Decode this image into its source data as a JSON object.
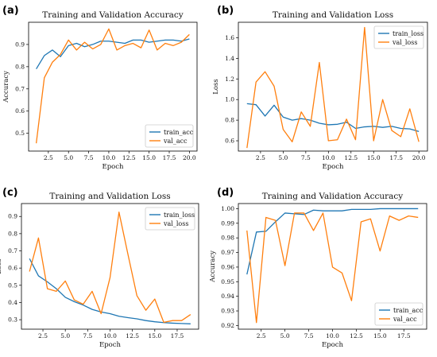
{
  "figure": {
    "panel_labels": [
      "(a)",
      "(b)",
      "(c)",
      "(d)"
    ]
  },
  "colors": {
    "train": "#1f77b4",
    "val": "#ff7f0e"
  },
  "chart_data": [
    {
      "label": "(a)",
      "type": "line",
      "title": "Training and Validation Accuracy",
      "xlabel": "Epoch",
      "ylabel": "Accuracy",
      "xlim": [
        0.05,
        20.95
      ],
      "ylim": [
        0.42,
        1.0
      ],
      "xticks": [
        2.5,
        5.0,
        7.5,
        10.0,
        12.5,
        15.0,
        17.5,
        20.0
      ],
      "yticks": [
        0.5,
        0.6,
        0.7,
        0.8,
        0.9
      ],
      "x": [
        1,
        2,
        3,
        4,
        5,
        6,
        7,
        8,
        9,
        10,
        11,
        12,
        13,
        14,
        15,
        16,
        17,
        18,
        19,
        20
      ],
      "series": [
        {
          "name": "train_acc",
          "color": "#1f77b4",
          "values": [
            0.79,
            0.85,
            0.875,
            0.845,
            0.895,
            0.905,
            0.89,
            0.9,
            0.915,
            0.915,
            0.91,
            0.905,
            0.92,
            0.92,
            0.91,
            0.915,
            0.92,
            0.92,
            0.915,
            0.925
          ]
        },
        {
          "name": "val_acc",
          "color": "#ff7f0e",
          "values": [
            0.455,
            0.75,
            0.82,
            0.855,
            0.92,
            0.875,
            0.91,
            0.88,
            0.9,
            0.97,
            0.875,
            0.895,
            0.905,
            0.885,
            0.965,
            0.875,
            0.905,
            0.895,
            0.91,
            0.945
          ]
        }
      ],
      "legend": "lower right"
    },
    {
      "label": "(b)",
      "type": "line",
      "title": "Training and Validation Loss",
      "xlabel": "Epoch",
      "ylabel": "Loss",
      "xlim": [
        0.05,
        20.95
      ],
      "ylim": [
        0.5,
        1.75
      ],
      "xticks": [
        2.5,
        5.0,
        7.5,
        10.0,
        12.5,
        15.0,
        17.5,
        20.0
      ],
      "yticks": [
        0.6,
        0.8,
        1.0,
        1.2,
        1.4,
        1.6
      ],
      "x": [
        1,
        2,
        3,
        4,
        5,
        6,
        7,
        8,
        9,
        10,
        11,
        12,
        13,
        14,
        15,
        16,
        17,
        18,
        19,
        20
      ],
      "series": [
        {
          "name": "train_loss",
          "color": "#1f77b4",
          "values": [
            0.96,
            0.95,
            0.84,
            0.945,
            0.83,
            0.8,
            0.815,
            0.8,
            0.77,
            0.755,
            0.76,
            0.78,
            0.72,
            0.735,
            0.74,
            0.73,
            0.74,
            0.72,
            0.715,
            0.69
          ]
        },
        {
          "name": "val_loss",
          "color": "#ff7f0e",
          "values": [
            0.53,
            1.17,
            1.27,
            1.13,
            0.71,
            0.59,
            0.88,
            0.74,
            1.36,
            0.6,
            0.61,
            0.81,
            0.61,
            1.7,
            0.6,
            1.0,
            0.7,
            0.64,
            0.91,
            0.59
          ]
        }
      ],
      "legend": "upper right"
    },
    {
      "label": "(c)",
      "type": "line",
      "title": "Training and Validation Loss",
      "xlabel": "Epoch",
      "ylabel": "Loss",
      "xlim": [
        0.1,
        19.9
      ],
      "ylim": [
        0.245,
        0.975
      ],
      "xticks": [
        2.5,
        5.0,
        7.5,
        10.0,
        12.5,
        15.0,
        17.5
      ],
      "yticks": [
        0.3,
        0.4,
        0.5,
        0.6,
        0.7,
        0.8,
        0.9
      ],
      "x": [
        1,
        2,
        3,
        4,
        5,
        6,
        7,
        8,
        9,
        10,
        11,
        12,
        13,
        14,
        15,
        16,
        17,
        18,
        19
      ],
      "series": [
        {
          "name": "train_loss",
          "color": "#1f77b4",
          "values": [
            0.655,
            0.555,
            0.52,
            0.48,
            0.43,
            0.405,
            0.385,
            0.36,
            0.345,
            0.335,
            0.32,
            0.312,
            0.305,
            0.295,
            0.288,
            0.283,
            0.28,
            0.278,
            0.276
          ]
        },
        {
          "name": "val_loss",
          "color": "#ff7f0e",
          "values": [
            0.58,
            0.775,
            0.48,
            0.465,
            0.525,
            0.415,
            0.39,
            0.465,
            0.335,
            0.545,
            0.925,
            0.68,
            0.44,
            0.355,
            0.42,
            0.285,
            0.295,
            0.295,
            0.33
          ]
        }
      ],
      "legend": "upper right"
    },
    {
      "label": "(d)",
      "type": "line",
      "title": "Training and Validation Accuracy",
      "xlabel": "Epoch",
      "ylabel": "Accuracy",
      "xlim": [
        0.1,
        19.9
      ],
      "ylim": [
        0.9175,
        1.0035
      ],
      "xticks": [
        2.5,
        5.0,
        7.5,
        10.0,
        12.5,
        15.0,
        17.5
      ],
      "yticks": [
        0.92,
        0.93,
        0.94,
        0.95,
        0.96,
        0.97,
        0.98,
        0.99,
        1.0
      ],
      "x": [
        1,
        2,
        3,
        4,
        5,
        6,
        7,
        8,
        9,
        10,
        11,
        12,
        13,
        14,
        15,
        16,
        17,
        18,
        19
      ],
      "series": [
        {
          "name": "train_acc",
          "color": "#1f77b4",
          "values": [
            0.955,
            0.984,
            0.9845,
            0.991,
            0.997,
            0.9965,
            0.996,
            0.999,
            0.9985,
            0.9985,
            0.9985,
            0.9995,
            0.9995,
            0.9995,
            1.0,
            1.0,
            1.0,
            1.0,
            1.0
          ]
        },
        {
          "name": "val_acc",
          "color": "#ff7f0e",
          "values": [
            0.985,
            0.922,
            0.994,
            0.992,
            0.961,
            0.997,
            0.997,
            0.985,
            0.997,
            0.96,
            0.956,
            0.937,
            0.991,
            0.993,
            0.971,
            0.995,
            0.992,
            0.995,
            0.994
          ]
        }
      ],
      "legend": "lower right"
    }
  ]
}
